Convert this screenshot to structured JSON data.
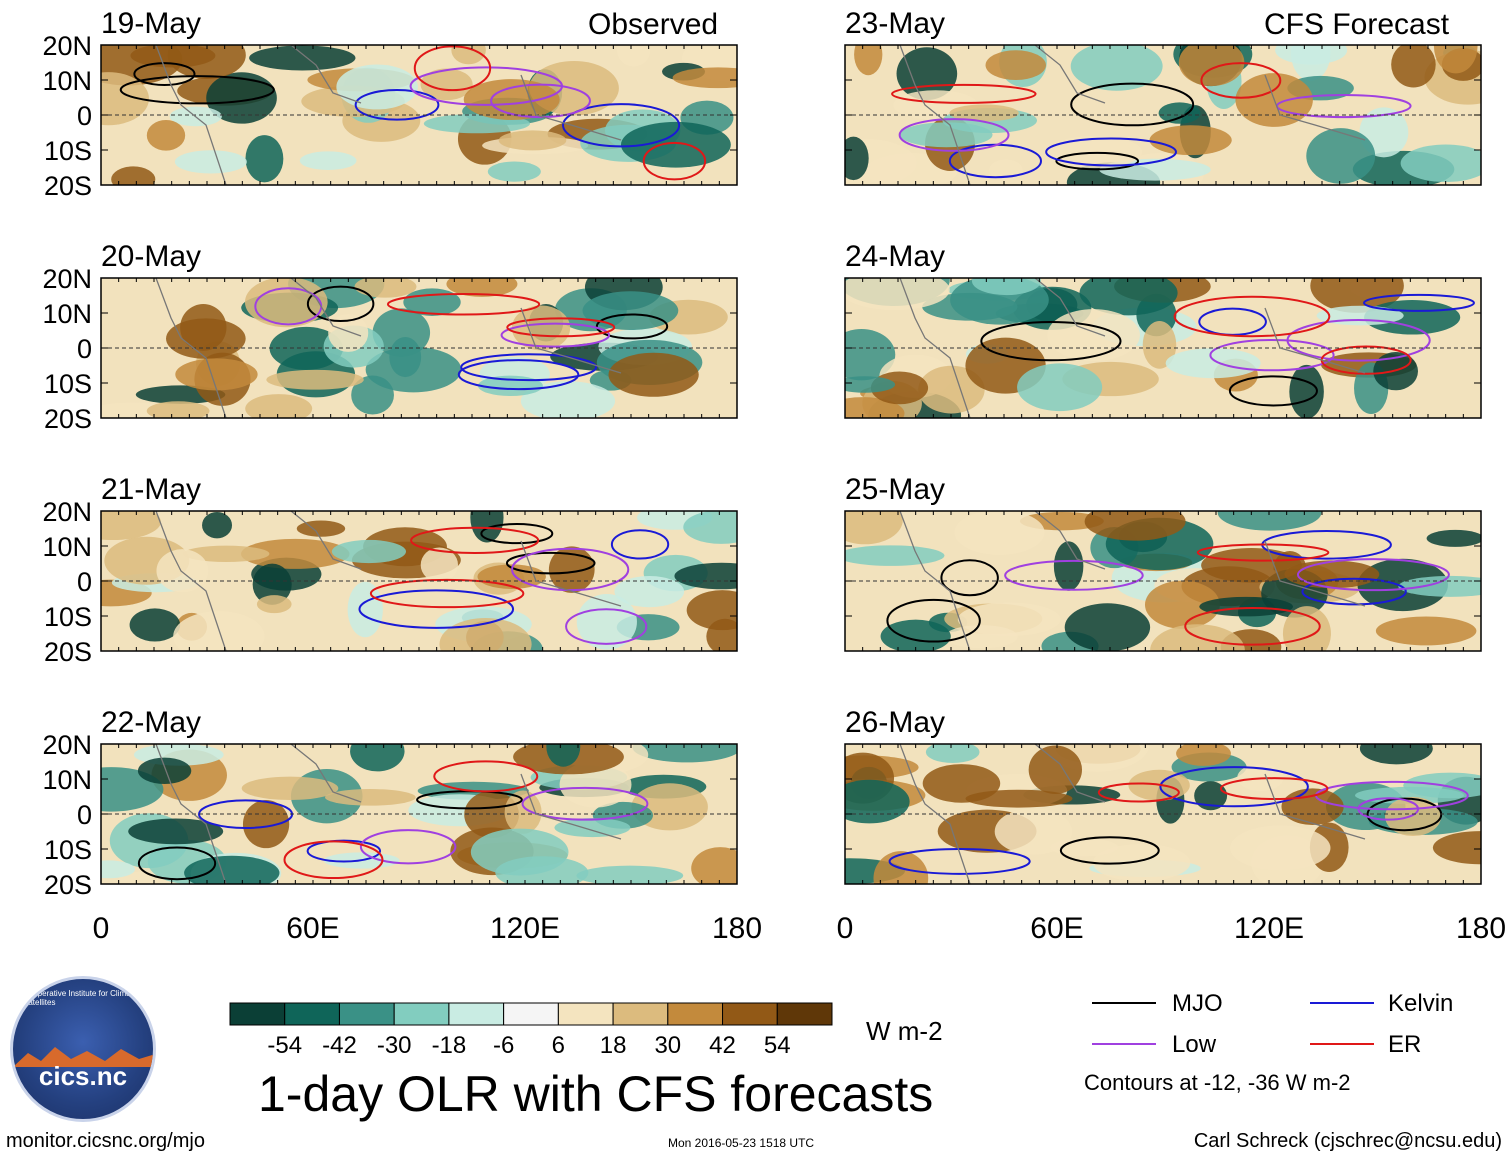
{
  "headers": {
    "left": "Observed",
    "right": "CFS Forecast"
  },
  "panels": [
    {
      "date": "19-May",
      "column": "observed",
      "row": 0
    },
    {
      "date": "20-May",
      "column": "observed",
      "row": 1
    },
    {
      "date": "21-May",
      "column": "observed",
      "row": 2
    },
    {
      "date": "22-May",
      "column": "observed",
      "row": 3
    },
    {
      "date": "23-May",
      "column": "forecast",
      "row": 0
    },
    {
      "date": "24-May",
      "column": "forecast",
      "row": 1
    },
    {
      "date": "25-May",
      "column": "forecast",
      "row": 2
    },
    {
      "date": "26-May",
      "column": "forecast",
      "row": 3
    }
  ],
  "lat_labels": [
    "20N",
    "10N",
    "0",
    "10S",
    "20S"
  ],
  "lon_labels": [
    "0",
    "60E",
    "120E",
    "180"
  ],
  "colorbar": {
    "colors": [
      "#0b3f36",
      "#0f6559",
      "#3a9186",
      "#82cdbf",
      "#c9ece3",
      "#f5f5f5",
      "#f4e4bf",
      "#dcbb7e",
      "#c38a3c",
      "#925916",
      "#5f3708"
    ],
    "ticks": [
      "-54",
      "-42",
      "-30",
      "-18",
      "-6",
      "6",
      "18",
      "30",
      "42",
      "54"
    ],
    "units": "W m-2"
  },
  "title": "1-day OLR with CFS forecasts",
  "legend": {
    "items": [
      {
        "label": "MJO",
        "color": "#000000"
      },
      {
        "label": "Kelvin",
        "color": "#1a1ad6"
      },
      {
        "label": "Low",
        "color": "#a040e0"
      },
      {
        "label": "ER",
        "color": "#e01818"
      }
    ],
    "note": "Contours at -12, -36 W m-2"
  },
  "footer": {
    "left": "monitor.cicsnc.org/mjo",
    "center": "Mon 2016-05-23 1518 UTC",
    "right": "Carl Schreck (cjschrec@ncsu.edu)"
  },
  "logo": {
    "text": "cics.nc",
    "ring_text": "Cooperative Institute for Climate and Satellites"
  }
}
